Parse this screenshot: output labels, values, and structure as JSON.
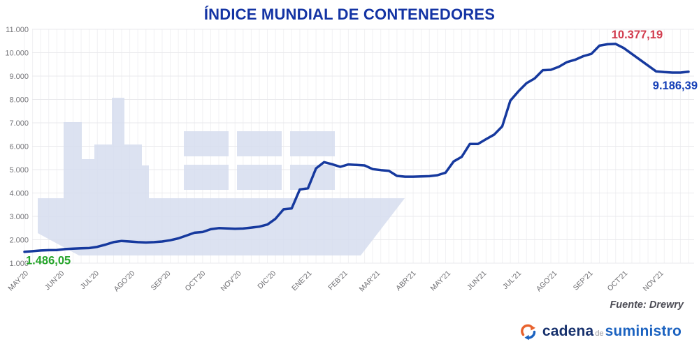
{
  "page": {
    "title": "ÍNDICE MUNDIAL DE CONTENEDORES"
  },
  "logo": {
    "word1": "cadena",
    "word2": "de",
    "word3": "suministro"
  },
  "chart_data": {
    "type": "line",
    "title": "ÍNDICE MUNDIAL DE CONTENEDORES",
    "source": "Fuente: Drewry",
    "categories": [
      "MAY'20",
      "JUN'20",
      "JUL'20",
      "AGO'20",
      "SEP'20",
      "OCT'20",
      "NOV'20",
      "DIC'20",
      "ENE'21",
      "FEB'21",
      "MAR'21",
      "ABR'21",
      "MAY'21",
      "JUN'21",
      "JUL'21",
      "AGO'21",
      "SEP'21",
      "OCT'21",
      "NOV'21"
    ],
    "month_week_offsets": [
      0,
      4.43,
      8.71,
      13.14,
      17.57,
      21.86,
      26.29,
      30.57,
      35.0,
      39.43,
      43.43,
      47.86,
      52.14,
      56.57,
      60.86,
      65.29,
      69.71,
      74.0,
      78.43
    ],
    "values": [
      1486,
      1510,
      1540,
      1555,
      1560,
      1600,
      1620,
      1635,
      1645,
      1700,
      1790,
      1900,
      1950,
      1925,
      1900,
      1885,
      1900,
      1925,
      1980,
      2060,
      2180,
      2300,
      2330,
      2450,
      2500,
      2485,
      2470,
      2480,
      2520,
      2560,
      2650,
      2900,
      3300,
      3340,
      4150,
      4200,
      5050,
      5320,
      5230,
      5120,
      5220,
      5200,
      5180,
      5020,
      4980,
      4950,
      4730,
      4700,
      4700,
      4710,
      4720,
      4760,
      4870,
      5350,
      5550,
      6100,
      6100,
      6300,
      6500,
      6850,
      7950,
      8350,
      8700,
      8900,
      9250,
      9270,
      9400,
      9600,
      9700,
      9850,
      9950,
      10300,
      10360,
      10377,
      10200,
      9950,
      9700,
      9450,
      9200,
      9170,
      9150,
      9150,
      9186
    ],
    "ylim": [
      1000,
      11000
    ],
    "ytick_labels": [
      "1.000",
      "2.000",
      "3.000",
      "4.000",
      "5.000",
      "6.000",
      "7.000",
      "8.000",
      "9.000",
      "10.000",
      "11.000"
    ],
    "grid": "on",
    "annotations": {
      "start": {
        "label": "1.486,05",
        "color": "#27a52c"
      },
      "peak": {
        "label": "10.377,19",
        "color": "#d23c4e"
      },
      "end": {
        "label": "9.186,39",
        "color": "#1640b7"
      }
    },
    "colors": {
      "line": "#16399e",
      "title": "#1434a4",
      "watermark": "#d6ddef",
      "grid_h": "#e9e9ec",
      "grid_v": "#f1f1f3",
      "axis_text": "#76767a"
    }
  }
}
